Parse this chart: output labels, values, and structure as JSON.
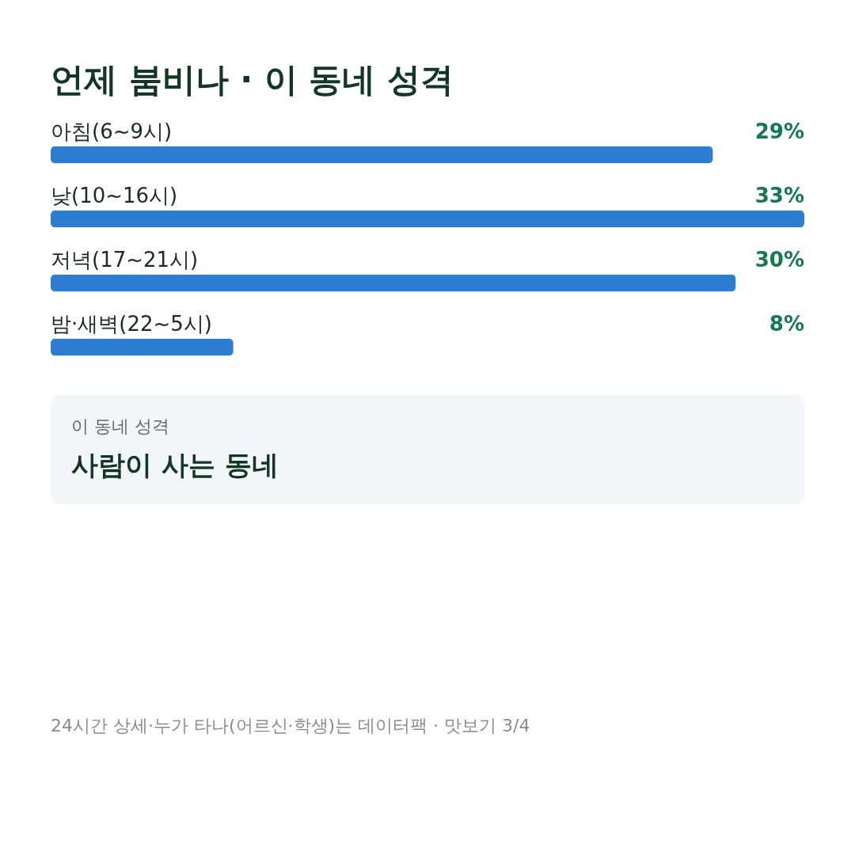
{
  "chart_data": {
    "type": "bar",
    "orientation": "horizontal",
    "title": "언제 붐비나 · 이 동네 성격",
    "categories": [
      "아침(6~9시)",
      "낮(10~16시)",
      "저녁(17~21시)",
      "밤·새벽(22~5시)"
    ],
    "values": [
      29,
      33,
      30,
      8
    ],
    "color": "#2d7dd2",
    "value_labels": [
      "29%",
      "33%",
      "30%",
      "8%"
    ],
    "annotations": [
      "이 동네 성격",
      "사람이 사는 동네",
      "24시간 상세·누가 타나(어르신·학생)는 데이터팩 · 맛보기 3/4"
    ]
  }
}
